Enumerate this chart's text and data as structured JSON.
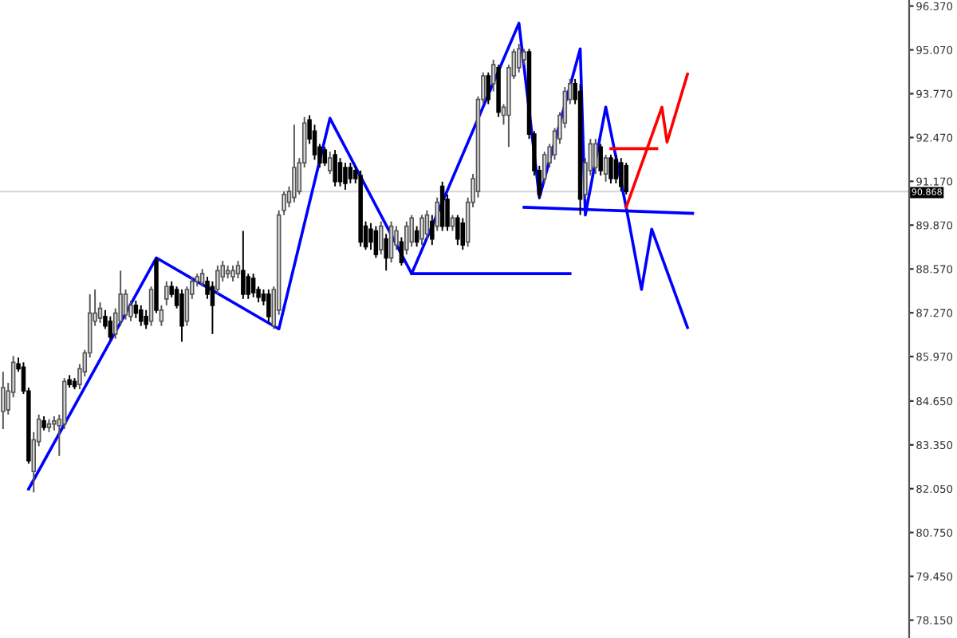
{
  "chart_data": {
    "type": "candlestick",
    "categories": [
      null,
      null,
      null,
      null,
      null,
      null,
      null,
      null,
      null,
      null,
      null,
      null,
      null,
      null,
      null,
      null,
      null,
      null,
      null,
      null,
      null,
      null,
      null,
      null,
      null,
      null,
      null,
      null,
      null,
      null,
      null,
      null,
      null,
      null,
      null,
      null,
      null,
      null,
      null,
      null,
      null,
      null,
      null,
      null,
      null,
      null,
      null,
      null,
      null,
      null,
      null,
      null,
      null,
      null,
      null,
      null,
      null,
      null,
      null,
      null,
      null,
      null,
      null,
      null,
      null,
      null,
      null,
      null,
      null,
      null,
      null,
      null,
      null,
      null,
      null,
      null,
      null,
      null,
      null,
      null,
      null,
      null,
      null,
      null,
      null,
      null,
      null,
      null,
      null,
      null,
      null,
      null,
      null,
      null,
      null,
      null,
      null,
      null,
      null,
      null,
      null,
      null,
      null,
      null,
      null,
      null,
      null,
      null,
      null,
      null,
      null,
      null,
      null,
      null,
      null,
      null,
      null,
      null,
      null,
      null,
      null,
      null,
      null,
      null,
      null,
      null,
      null,
      null,
      null,
      null,
      null,
      null,
      null,
      null,
      null,
      null,
      null,
      null,
      null,
      null,
      null,
      null,
      null,
      null,
      null,
      null,
      null,
      null,
      null,
      null,
      null,
      null,
      null,
      null,
      null,
      null,
      null,
      null,
      null,
      null,
      null,
      null,
      null,
      null,
      null,
      null,
      null,
      null,
      null,
      null,
      null,
      null,
      null,
      null,
      null,
      null,
      null,
      null
    ],
    "ohlc": [
      [
        84.34,
        85.52,
        83.82,
        85.05
      ],
      [
        84.39,
        85.19,
        84.25,
        84.95
      ],
      [
        84.91,
        85.99,
        84.76,
        85.8
      ],
      [
        85.75,
        85.94,
        85.52,
        85.61
      ],
      [
        85.66,
        85.8,
        84.86,
        84.95
      ],
      [
        84.95,
        85.05,
        82.79,
        82.88
      ],
      [
        82.56,
        83.73,
        81.94,
        83.5
      ],
      [
        83.45,
        84.25,
        83.31,
        84.11
      ],
      [
        84.06,
        84.2,
        83.78,
        83.87
      ],
      [
        83.87,
        84.11,
        83.73,
        83.97
      ],
      [
        83.97,
        84.2,
        83.78,
        84.06
      ],
      [
        83.92,
        84.25,
        83.02,
        84.11
      ],
      [
        83.97,
        85.33,
        83.82,
        85.23
      ],
      [
        85.28,
        85.42,
        85.05,
        85.14
      ],
      [
        85.23,
        85.33,
        85.0,
        85.09
      ],
      [
        85.14,
        85.75,
        85.0,
        85.61
      ],
      [
        85.52,
        86.17,
        85.38,
        86.08
      ],
      [
        86.08,
        87.82,
        85.94,
        87.26
      ],
      [
        87.02,
        87.96,
        86.88,
        87.26
      ],
      [
        87.11,
        87.58,
        86.97,
        87.4
      ],
      [
        87.16,
        87.35,
        86.79,
        86.88
      ],
      [
        87.02,
        87.16,
        86.46,
        86.55
      ],
      [
        86.64,
        87.4,
        86.5,
        87.26
      ],
      [
        87.02,
        88.52,
        86.88,
        87.82
      ],
      [
        87.21,
        87.96,
        87.07,
        87.82
      ],
      [
        87.16,
        87.63,
        87.02,
        87.49
      ],
      [
        87.49,
        87.63,
        87.11,
        87.26
      ],
      [
        87.35,
        87.49,
        86.88,
        87.02
      ],
      [
        87.16,
        87.35,
        86.79,
        86.93
      ],
      [
        87.02,
        88.05,
        86.88,
        87.96
      ],
      [
        88.81,
        88.9,
        87.26,
        87.35
      ],
      [
        87.02,
        87.49,
        86.88,
        87.35
      ],
      [
        87.68,
        88.2,
        87.49,
        88.05
      ],
      [
        88.05,
        88.2,
        87.73,
        87.82
      ],
      [
        87.96,
        88.05,
        87.4,
        87.49
      ],
      [
        87.82,
        87.96,
        86.41,
        86.88
      ],
      [
        87.02,
        88.05,
        86.88,
        87.96
      ],
      [
        87.82,
        88.34,
        87.68,
        88.2
      ],
      [
        88.2,
        88.43,
        88.05,
        88.34
      ],
      [
        88.15,
        88.57,
        88.05,
        88.43
      ],
      [
        88.2,
        88.34,
        87.68,
        87.82
      ],
      [
        88.05,
        88.2,
        86.64,
        87.49
      ],
      [
        87.96,
        88.67,
        87.82,
        88.52
      ],
      [
        88.34,
        88.81,
        88.2,
        88.67
      ],
      [
        88.43,
        88.67,
        88.29,
        88.52
      ],
      [
        88.34,
        88.67,
        88.2,
        88.52
      ],
      [
        88.43,
        88.81,
        88.29,
        88.67
      ],
      [
        88.52,
        89.7,
        87.68,
        87.82
      ],
      [
        88.34,
        88.43,
        87.68,
        87.82
      ],
      [
        88.29,
        88.43,
        87.73,
        87.87
      ],
      [
        87.96,
        88.05,
        87.58,
        87.73
      ],
      [
        87.82,
        87.96,
        87.49,
        87.63
      ],
      [
        87.82,
        87.96,
        86.97,
        87.16
      ],
      [
        86.88,
        88.05,
        86.79,
        87.96
      ],
      [
        87.35,
        90.31,
        87.21,
        90.17
      ],
      [
        90.31,
        90.87,
        90.17,
        90.78
      ],
      [
        90.55,
        91.02,
        90.4,
        90.87
      ],
      [
        90.69,
        92.85,
        90.55,
        91.58
      ],
      [
        90.87,
        91.86,
        90.78,
        91.72
      ],
      [
        91.72,
        93.08,
        91.58,
        92.9
      ],
      [
        92.99,
        93.13,
        92.28,
        92.43
      ],
      [
        92.66,
        92.85,
        91.81,
        91.96
      ],
      [
        92.19,
        92.28,
        91.58,
        91.72
      ],
      [
        92.1,
        92.19,
        91.63,
        91.72
      ],
      [
        91.49,
        92.05,
        91.39,
        91.86
      ],
      [
        91.96,
        92.1,
        91.02,
        91.16
      ],
      [
        91.72,
        91.86,
        91.02,
        91.16
      ],
      [
        91.58,
        91.72,
        90.92,
        91.11
      ],
      [
        91.58,
        91.72,
        91.11,
        91.25
      ],
      [
        91.49,
        91.63,
        91.11,
        91.25
      ],
      [
        91.34,
        91.49,
        89.23,
        89.37
      ],
      [
        89.84,
        89.98,
        89.14,
        89.23
      ],
      [
        89.75,
        89.93,
        89.14,
        89.37
      ],
      [
        89.7,
        89.84,
        88.9,
        89.0
      ],
      [
        89.14,
        89.98,
        89.0,
        89.84
      ],
      [
        89.46,
        89.61,
        88.52,
        88.9
      ],
      [
        88.9,
        89.98,
        88.76,
        89.84
      ],
      [
        89.28,
        89.84,
        89.14,
        89.7
      ],
      [
        89.37,
        89.51,
        88.67,
        88.76
      ],
      [
        89.14,
        89.98,
        89.0,
        89.84
      ],
      [
        89.37,
        90.17,
        89.23,
        90.08
      ],
      [
        89.7,
        89.84,
        89.23,
        89.37
      ],
      [
        89.46,
        90.17,
        89.28,
        90.08
      ],
      [
        89.61,
        90.31,
        89.46,
        90.17
      ],
      [
        89.98,
        90.17,
        89.28,
        89.46
      ],
      [
        89.84,
        90.69,
        89.7,
        90.55
      ],
      [
        91.02,
        91.16,
        89.7,
        89.84
      ],
      [
        90.64,
        90.78,
        89.7,
        89.84
      ],
      [
        89.84,
        90.17,
        89.7,
        90.08
      ],
      [
        90.08,
        90.17,
        89.28,
        89.46
      ],
      [
        89.93,
        90.08,
        89.14,
        89.28
      ],
      [
        89.37,
        90.69,
        89.23,
        90.55
      ],
      [
        90.55,
        91.39,
        90.4,
        91.25
      ],
      [
        90.87,
        93.69,
        90.69,
        93.6
      ],
      [
        93.6,
        94.4,
        93.46,
        94.3
      ],
      [
        94.3,
        94.4,
        93.46,
        93.6
      ],
      [
        94.07,
        94.78,
        93.84,
        94.63
      ],
      [
        94.54,
        94.63,
        93.08,
        93.22
      ],
      [
        93.13,
        93.46,
        92.85,
        93.37
      ],
      [
        93.13,
        94.63,
        92.19,
        94.54
      ],
      [
        94.3,
        95.1,
        94.21,
        95.01
      ],
      [
        94.54,
        95.25,
        94.4,
        95.1
      ],
      [
        94.78,
        95.1,
        94.63,
        95.01
      ],
      [
        95.01,
        95.1,
        92.43,
        92.57
      ],
      [
        92.57,
        92.66,
        91.34,
        91.49
      ],
      [
        91.49,
        91.63,
        90.64,
        90.78
      ],
      [
        91.25,
        92.05,
        91.11,
        91.96
      ],
      [
        91.72,
        92.28,
        91.58,
        92.19
      ],
      [
        91.96,
        92.75,
        91.81,
        92.66
      ],
      [
        92.43,
        93.22,
        92.28,
        93.13
      ],
      [
        92.9,
        93.97,
        92.75,
        93.84
      ],
      [
        93.6,
        94.21,
        93.46,
        94.07
      ],
      [
        94.07,
        94.21,
        93.46,
        93.6
      ],
      [
        93.84,
        94.07,
        90.17,
        90.64
      ],
      [
        90.78,
        91.86,
        90.64,
        91.72
      ],
      [
        91.49,
        92.43,
        91.34,
        92.28
      ],
      [
        91.58,
        92.43,
        91.39,
        92.28
      ],
      [
        92.19,
        92.28,
        91.34,
        91.49
      ],
      [
        91.39,
        91.96,
        91.16,
        91.86
      ],
      [
        91.86,
        91.96,
        91.11,
        91.25
      ],
      [
        91.81,
        91.96,
        91.11,
        91.25
      ],
      [
        91.72,
        91.86,
        90.87,
        91.02
      ],
      [
        91.63,
        91.72,
        90.78,
        90.87
      ],
      null,
      null,
      null,
      null,
      null,
      null,
      null,
      null,
      null,
      null,
      null,
      null,
      null,
      null,
      null,
      null,
      null,
      null,
      null,
      null,
      null,
      null,
      null,
      null,
      null,
      null,
      null,
      null,
      null,
      null,
      null,
      null,
      null,
      null,
      null,
      null,
      null,
      null,
      null,
      null,
      null,
      null,
      null,
      null,
      null,
      null,
      null,
      null,
      null,
      null,
      null,
      null,
      null,
      null,
      null
    ],
    "series": [
      {
        "type": "line",
        "color": "#0000ff",
        "values": [
          null,
          null,
          null,
          null,
          null,
          82.04,
          null,
          null,
          null,
          null,
          null,
          null,
          null,
          null,
          null,
          null,
          null,
          null,
          null,
          null,
          null,
          null,
          null,
          null,
          null,
          null,
          null,
          null,
          null,
          null,
          88.9,
          null,
          null,
          null,
          null,
          null,
          null,
          null,
          null,
          null,
          null,
          null,
          null,
          null,
          null,
          null,
          null,
          null,
          null,
          null,
          null,
          null,
          null,
          null,
          86.79,
          null,
          null,
          null,
          null,
          null,
          null,
          null,
          null,
          null,
          93.04,
          null,
          null,
          null,
          null,
          null,
          null,
          null,
          null,
          null,
          null,
          null,
          null,
          null,
          null,
          null,
          88.43,
          null,
          null,
          null,
          null,
          null,
          null,
          null,
          null,
          null,
          null,
          null,
          null,
          null,
          null,
          null,
          null,
          null,
          null,
          null,
          null,
          95.86,
          null,
          null,
          null,
          90.69,
          null,
          null,
          null,
          null,
          null,
          null,
          null,
          95.1,
          90.17,
          null,
          null,
          null,
          93.37,
          null,
          null,
          null,
          90.4,
          null,
          null,
          87.96,
          null,
          89.75,
          null,
          null,
          null,
          null,
          null,
          null,
          86.83,
          null,
          null,
          null,
          null,
          null,
          null,
          null,
          null,
          null,
          null,
          null,
          null,
          null,
          null,
          null,
          null,
          null,
          null,
          null,
          null,
          null,
          null,
          null,
          null,
          null,
          null,
          null,
          null,
          null,
          null,
          null,
          null,
          null,
          null,
          null,
          null,
          null,
          null,
          null,
          null,
          null,
          null,
          null
        ]
      },
      {
        "type": "line",
        "color": "#0000ff",
        "values": [
          null,
          null,
          null,
          null,
          null,
          null,
          null,
          null,
          null,
          null,
          null,
          null,
          null,
          null,
          null,
          null,
          null,
          null,
          null,
          null,
          null,
          null,
          null,
          null,
          null,
          null,
          null,
          null,
          null,
          null,
          null,
          null,
          null,
          null,
          null,
          null,
          null,
          null,
          null,
          null,
          null,
          null,
          null,
          null,
          null,
          null,
          null,
          null,
          null,
          null,
          null,
          null,
          null,
          null,
          null,
          null,
          null,
          null,
          null,
          null,
          null,
          null,
          null,
          null,
          null,
          null,
          null,
          null,
          null,
          null,
          null,
          null,
          null,
          null,
          null,
          null,
          null,
          null,
          null,
          null,
          88.43,
          null,
          null,
          null,
          null,
          null,
          null,
          null,
          null,
          null,
          null,
          null,
          null,
          null,
          null,
          null,
          null,
          null,
          null,
          null,
          null,
          null,
          null,
          null,
          null,
          null,
          null,
          null,
          null,
          null,
          null,
          88.43,
          null,
          null,
          null,
          null,
          null,
          null,
          null,
          null,
          null,
          null,
          null,
          null,
          null,
          null,
          null,
          null,
          null,
          null,
          null,
          null,
          null,
          null,
          null,
          null,
          null,
          null,
          null,
          null,
          null,
          null,
          null,
          null,
          null,
          null,
          null,
          null,
          null,
          null,
          null,
          null,
          null,
          null,
          null,
          null,
          null,
          null,
          null,
          null,
          null,
          null,
          null,
          null,
          null,
          null,
          null,
          null,
          null,
          null,
          null,
          null,
          null,
          null,
          null,
          null,
          null,
          null
        ]
      },
      {
        "type": "line",
        "color": "#0000ff",
        "values": [
          null,
          null,
          null,
          null,
          null,
          null,
          null,
          null,
          null,
          null,
          null,
          null,
          null,
          null,
          null,
          null,
          null,
          null,
          null,
          null,
          null,
          null,
          null,
          null,
          null,
          null,
          null,
          null,
          null,
          null,
          null,
          null,
          null,
          null,
          null,
          null,
          null,
          null,
          null,
          null,
          null,
          null,
          null,
          null,
          null,
          null,
          null,
          null,
          null,
          null,
          null,
          null,
          null,
          null,
          null,
          null,
          null,
          null,
          null,
          null,
          null,
          null,
          null,
          null,
          null,
          null,
          null,
          null,
          null,
          null,
          null,
          null,
          null,
          null,
          null,
          null,
          null,
          null,
          null,
          null,
          null,
          null,
          null,
          null,
          null,
          null,
          null,
          null,
          null,
          null,
          null,
          null,
          null,
          null,
          null,
          null,
          null,
          null,
          null,
          null,
          null,
          null,
          90.4,
          null,
          null,
          null,
          null,
          null,
          null,
          null,
          null,
          null,
          null,
          null,
          null,
          null,
          null,
          null,
          null,
          null,
          null,
          null,
          null,
          null,
          null,
          null,
          null,
          null,
          null,
          null,
          null,
          null,
          null,
          null,
          null,
          90.22,
          null,
          null,
          null,
          null,
          null,
          null,
          null,
          null,
          null,
          null,
          null,
          null,
          null,
          null,
          null,
          null,
          null,
          null,
          null,
          null,
          null,
          null,
          null,
          null,
          null,
          null,
          null,
          null,
          null,
          null,
          null,
          null,
          null,
          null,
          null,
          null,
          null,
          null,
          null,
          null,
          null,
          null
        ]
      },
      {
        "type": "line",
        "color": "#ff0000",
        "values": [
          null,
          null,
          null,
          null,
          null,
          null,
          null,
          null,
          null,
          null,
          null,
          null,
          null,
          null,
          null,
          null,
          null,
          null,
          null,
          null,
          null,
          null,
          null,
          null,
          null,
          null,
          null,
          null,
          null,
          null,
          null,
          null,
          null,
          null,
          null,
          null,
          null,
          null,
          null,
          null,
          null,
          null,
          null,
          null,
          null,
          null,
          null,
          null,
          null,
          null,
          null,
          null,
          null,
          null,
          null,
          null,
          null,
          null,
          null,
          null,
          null,
          null,
          null,
          null,
          null,
          null,
          null,
          null,
          null,
          null,
          null,
          null,
          null,
          null,
          null,
          null,
          null,
          null,
          null,
          null,
          null,
          null,
          null,
          null,
          null,
          null,
          null,
          null,
          null,
          null,
          null,
          null,
          null,
          null,
          null,
          null,
          null,
          null,
          null,
          null,
          null,
          null,
          null,
          null,
          null,
          null,
          null,
          null,
          null,
          null,
          null,
          null,
          null,
          null,
          null,
          null,
          null,
          null,
          null,
          null,
          null,
          null,
          90.4,
          null,
          null,
          null,
          null,
          null,
          null,
          93.37,
          92.33,
          null,
          null,
          null,
          94.35,
          null,
          null,
          null,
          null,
          null,
          null,
          null,
          null,
          null,
          null,
          null,
          null,
          null,
          null,
          null,
          null,
          null,
          null,
          null,
          null,
          null,
          null,
          null,
          null,
          null,
          null,
          null,
          null,
          null,
          null,
          null,
          null,
          null,
          null,
          null,
          null,
          null,
          null,
          null,
          null,
          null,
          null,
          null
        ]
      },
      {
        "type": "line",
        "color": "#ff0000",
        "values": [
          null,
          null,
          null,
          null,
          null,
          null,
          null,
          null,
          null,
          null,
          null,
          null,
          null,
          null,
          null,
          null,
          null,
          null,
          null,
          null,
          null,
          null,
          null,
          null,
          null,
          null,
          null,
          null,
          null,
          null,
          null,
          null,
          null,
          null,
          null,
          null,
          null,
          null,
          null,
          null,
          null,
          null,
          null,
          null,
          null,
          null,
          null,
          null,
          null,
          null,
          null,
          null,
          null,
          null,
          null,
          null,
          null,
          null,
          null,
          null,
          null,
          null,
          null,
          null,
          null,
          null,
          null,
          null,
          null,
          null,
          null,
          null,
          null,
          null,
          null,
          null,
          null,
          null,
          null,
          null,
          null,
          null,
          null,
          null,
          null,
          null,
          null,
          null,
          null,
          null,
          null,
          null,
          null,
          null,
          null,
          null,
          null,
          null,
          null,
          null,
          null,
          null,
          null,
          null,
          null,
          null,
          null,
          null,
          null,
          null,
          null,
          null,
          null,
          null,
          null,
          null,
          null,
          null,
          null,
          92.14,
          null,
          null,
          null,
          null,
          null,
          null,
          null,
          null,
          92.14,
          null,
          null,
          null,
          null,
          null,
          null,
          null,
          null,
          null,
          null,
          null,
          null,
          null,
          null,
          null,
          null,
          null,
          null,
          null,
          null,
          null,
          null,
          null,
          null,
          null,
          null,
          null,
          null,
          null,
          null,
          null,
          null,
          null,
          null,
          null,
          null,
          null,
          null,
          null,
          null,
          null,
          null,
          null,
          null,
          null,
          null,
          null,
          null,
          null
        ]
      }
    ],
    "ref_lines": [
      {
        "axis": "y",
        "value": 90.868,
        "label": "90.868",
        "color": "#d9d9d9"
      }
    ],
    "ylim": [
      77.62,
      96.55
    ],
    "yticks": [
      {
        "value": 96.37,
        "label": "96.370"
      },
      {
        "value": 95.07,
        "label": "95.070"
      },
      {
        "value": 93.77,
        "label": "93.770"
      },
      {
        "value": 92.47,
        "label": "92.470"
      },
      {
        "value": 91.17,
        "label": "91.170"
      },
      {
        "value": 89.87,
        "label": "89.870"
      },
      {
        "value": 88.57,
        "label": "88.570"
      },
      {
        "value": 87.27,
        "label": "87.270"
      },
      {
        "value": 85.97,
        "label": "85.970"
      },
      {
        "value": 84.65,
        "label": "84.650"
      },
      {
        "value": 83.35,
        "label": "83.350"
      },
      {
        "value": 82.05,
        "label": "82.050"
      },
      {
        "value": 80.75,
        "label": "80.750"
      },
      {
        "value": 79.45,
        "label": "79.450"
      },
      {
        "value": 78.15,
        "label": "78.150"
      }
    ],
    "tick_labels": "y",
    "grid": false
  }
}
